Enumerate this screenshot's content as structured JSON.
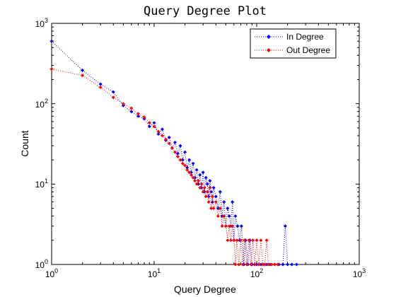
{
  "chart_data": {
    "type": "scatter",
    "title": "Query Degree Plot",
    "xlabel": "Query Degree",
    "ylabel": "Count",
    "xscale": "log",
    "yscale": "log",
    "xlim": [
      1,
      1000
    ],
    "ylim": [
      1,
      1000
    ],
    "x_ticks": [
      {
        "base": "10",
        "exp": "0"
      },
      {
        "base": "10",
        "exp": "1"
      },
      {
        "base": "10",
        "exp": "2"
      },
      {
        "base": "10",
        "exp": "3"
      }
    ],
    "y_ticks": [
      {
        "base": "10",
        "exp": "0"
      },
      {
        "base": "10",
        "exp": "1"
      },
      {
        "base": "10",
        "exp": "2"
      },
      {
        "base": "10",
        "exp": "3"
      }
    ],
    "grid": false,
    "legend_position": "top-right",
    "style": "dotted line with diamond markers",
    "series": [
      {
        "name": "In Degree",
        "color": "#0000ff",
        "points": [
          [
            1,
            600
          ],
          [
            2,
            260
          ],
          [
            3,
            175
          ],
          [
            4,
            140
          ],
          [
            5,
            95
          ],
          [
            6,
            80
          ],
          [
            7,
            70
          ],
          [
            8,
            65
          ],
          [
            9,
            52
          ],
          [
            10,
            58
          ],
          [
            11,
            42
          ],
          [
            12,
            48
          ],
          [
            13,
            35
          ],
          [
            14,
            38
          ],
          [
            15,
            28
          ],
          [
            16,
            33
          ],
          [
            17,
            24
          ],
          [
            18,
            30
          ],
          [
            19,
            20
          ],
          [
            20,
            25
          ],
          [
            21,
            16
          ],
          [
            22,
            20
          ],
          [
            23,
            14
          ],
          [
            24,
            18
          ],
          [
            25,
            12
          ],
          [
            26,
            15
          ],
          [
            27,
            10
          ],
          [
            28,
            13
          ],
          [
            29,
            9
          ],
          [
            30,
            14
          ],
          [
            31,
            8
          ],
          [
            32,
            12
          ],
          [
            33,
            10
          ],
          [
            34,
            7
          ],
          [
            35,
            11
          ],
          [
            36,
            8
          ],
          [
            37,
            6
          ],
          [
            38,
            9
          ],
          [
            40,
            7
          ],
          [
            42,
            5
          ],
          [
            44,
            8
          ],
          [
            46,
            4
          ],
          [
            48,
            6
          ],
          [
            50,
            3
          ],
          [
            52,
            5
          ],
          [
            54,
            4
          ],
          [
            56,
            3
          ],
          [
            58,
            6
          ],
          [
            60,
            2
          ],
          [
            62,
            4
          ],
          [
            65,
            3
          ],
          [
            68,
            2
          ],
          [
            71,
            3
          ],
          [
            75,
            1
          ],
          [
            78,
            2
          ],
          [
            82,
            1
          ],
          [
            86,
            2
          ],
          [
            90,
            1
          ],
          [
            95,
            1
          ],
          [
            100,
            1
          ],
          [
            105,
            1
          ],
          [
            110,
            1
          ],
          [
            115,
            1
          ],
          [
            120,
            1
          ],
          [
            125,
            1
          ],
          [
            135,
            1
          ],
          [
            150,
            1
          ],
          [
            165,
            1
          ],
          [
            180,
            1
          ],
          [
            190,
            3
          ],
          [
            200,
            1
          ],
          [
            220,
            1
          ],
          [
            245,
            1
          ]
        ]
      },
      {
        "name": "Out Degree",
        "color": "#ff0000",
        "points": [
          [
            1,
            270
          ],
          [
            2,
            225
          ],
          [
            3,
            160
          ],
          [
            4,
            120
          ],
          [
            5,
            100
          ],
          [
            6,
            88
          ],
          [
            7,
            75
          ],
          [
            8,
            68
          ],
          [
            9,
            58
          ],
          [
            10,
            52
          ],
          [
            11,
            45
          ],
          [
            12,
            40
          ],
          [
            13,
            36
          ],
          [
            14,
            32
          ],
          [
            15,
            28
          ],
          [
            16,
            25
          ],
          [
            17,
            22
          ],
          [
            18,
            20
          ],
          [
            19,
            18
          ],
          [
            20,
            17
          ],
          [
            21,
            15
          ],
          [
            22,
            14
          ],
          [
            23,
            13
          ],
          [
            24,
            12
          ],
          [
            25,
            11
          ],
          [
            26,
            10
          ],
          [
            27,
            11
          ],
          [
            28,
            9
          ],
          [
            29,
            10
          ],
          [
            30,
            8
          ],
          [
            31,
            9
          ],
          [
            32,
            7
          ],
          [
            33,
            8
          ],
          [
            34,
            6
          ],
          [
            35,
            9
          ],
          [
            36,
            5
          ],
          [
            37,
            7
          ],
          [
            38,
            5
          ],
          [
            40,
            6
          ],
          [
            42,
            4
          ],
          [
            44,
            5
          ],
          [
            46,
            3
          ],
          [
            48,
            4
          ],
          [
            50,
            3
          ],
          [
            52,
            2
          ],
          [
            54,
            3
          ],
          [
            56,
            2
          ],
          [
            58,
            3
          ],
          [
            60,
            2
          ],
          [
            62,
            1
          ],
          [
            64,
            2
          ],
          [
            67,
            1
          ],
          [
            70,
            2
          ],
          [
            73,
            1
          ],
          [
            76,
            2
          ],
          [
            80,
            1
          ],
          [
            84,
            2
          ],
          [
            88,
            1
          ],
          [
            92,
            2
          ],
          [
            96,
            1
          ],
          [
            100,
            2
          ],
          [
            105,
            1
          ],
          [
            110,
            2
          ],
          [
            115,
            1
          ],
          [
            120,
            1
          ],
          [
            125,
            2
          ],
          [
            130,
            1
          ],
          [
            140,
            1
          ],
          [
            150,
            1
          ],
          [
            160,
            1
          ]
        ]
      }
    ]
  }
}
